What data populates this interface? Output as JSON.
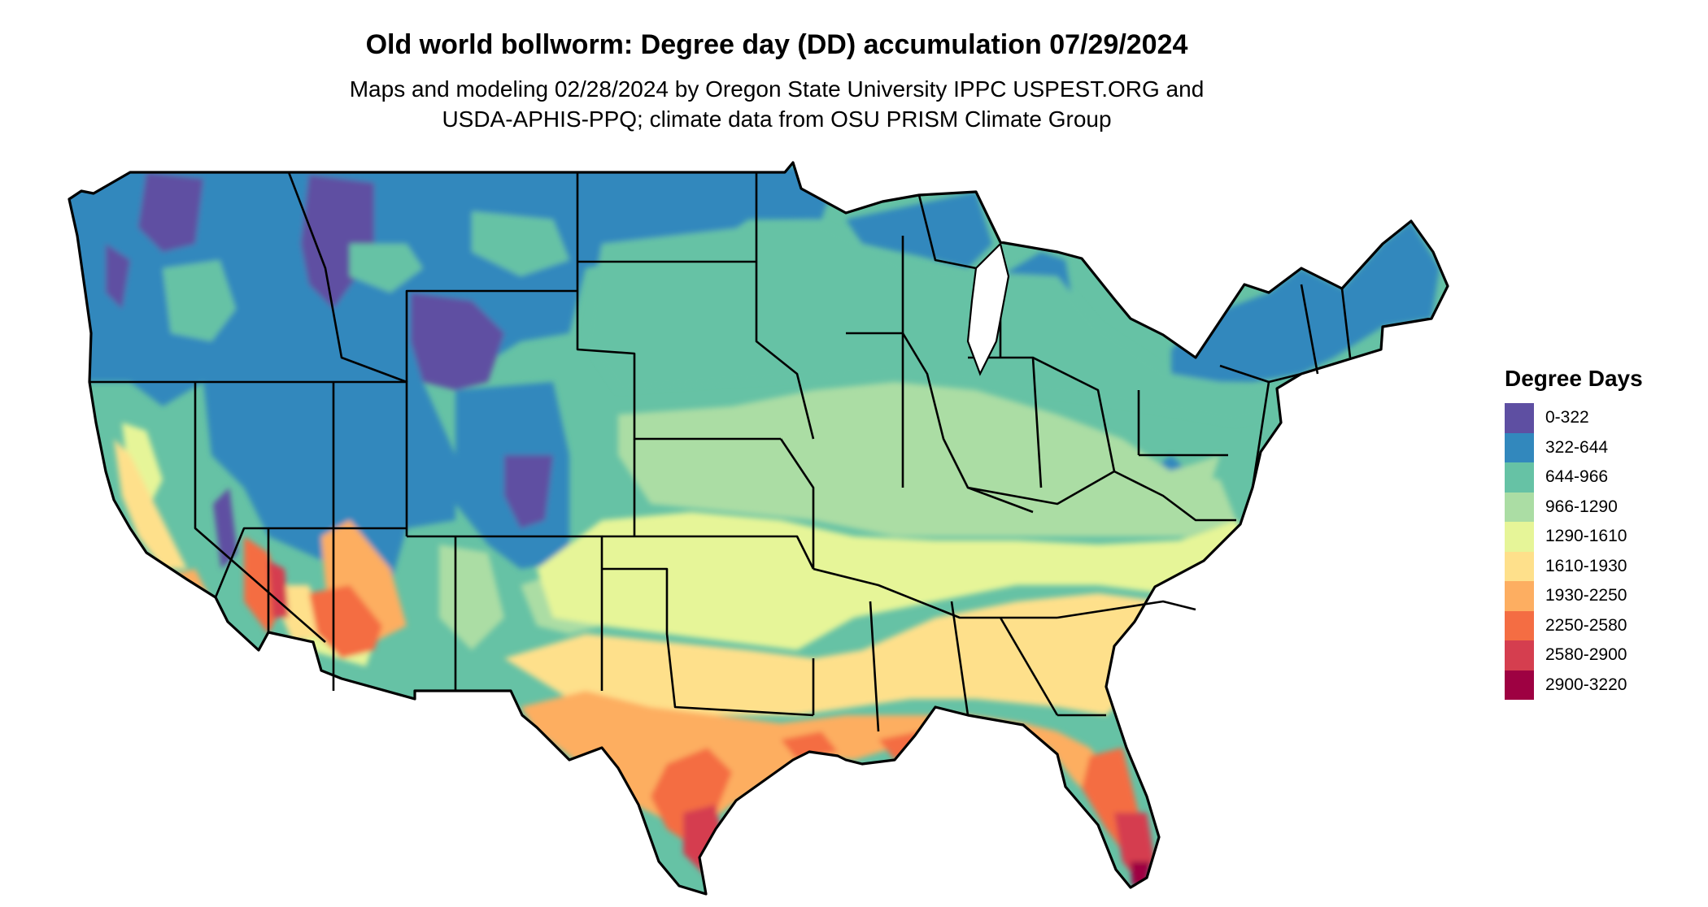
{
  "title": "Old world bollworm: Degree day (DD) accumulation 07/29/2024",
  "subtitle_line1": "Maps and modeling 02/28/2024 by Oregon State University IPPC USPEST.ORG and",
  "subtitle_line2": "USDA-APHIS-PPQ; climate data from OSU PRISM Climate Group",
  "legend": {
    "title": "Degree Days",
    "items": [
      {
        "label": "0-322",
        "color": "#5e4fa2"
      },
      {
        "label": "322-644",
        "color": "#3288bd"
      },
      {
        "label": "644-966",
        "color": "#66c2a5"
      },
      {
        "label": "966-1290",
        "color": "#abdda4"
      },
      {
        "label": "1290-1610",
        "color": "#e6f598"
      },
      {
        "label": "1610-1930",
        "color": "#fee08b"
      },
      {
        "label": "1930-2250",
        "color": "#fdae61"
      },
      {
        "label": "2250-2580",
        "color": "#f46d43"
      },
      {
        "label": "2580-2900",
        "color": "#d53e4f"
      },
      {
        "label": "2900-3220",
        "color": "#9e0142"
      }
    ]
  }
}
